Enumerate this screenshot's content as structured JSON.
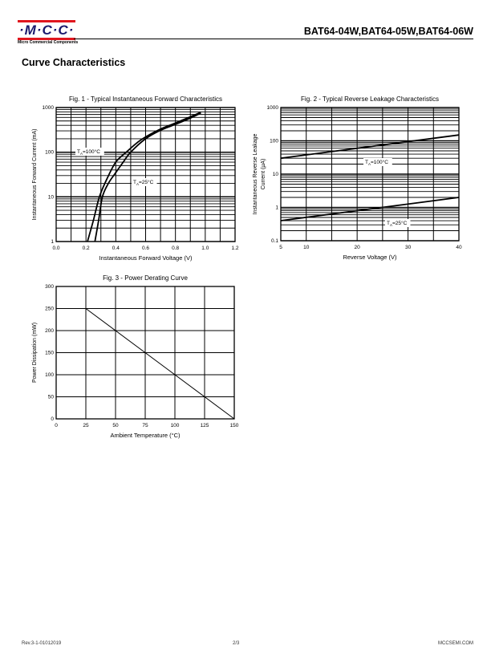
{
  "header": {
    "logo_text": "·M·C·C·",
    "logo_sub": "Micro Commercial Components",
    "part_numbers": "BAT64-04W,BAT64-05W,BAT64-06W"
  },
  "section_title": "Curve Characteristics",
  "footer": {
    "revision": "Rev.3-1-01012019",
    "page": "2/3",
    "website": "MCCSEMI.COM"
  },
  "colors": {
    "logo_red": "#e0161e",
    "logo_blue": "#1a1a6e"
  },
  "chart_data": [
    {
      "type": "line",
      "title": "Fig. 1 - Typical Instantaneous Forward Characteristics",
      "xlabel": "Instantaneous Forward Voltage (V)",
      "ylabel": [
        "Instantaneous Forward Current (mA)"
      ],
      "xscale": "linear",
      "yscale": "log",
      "xlim": [
        0,
        1.2
      ],
      "ylim": [
        1,
        1000
      ],
      "grid": true,
      "xticks": [
        {
          "v": 0,
          "label": "0.0"
        },
        {
          "v": 0.2,
          "label": "0.2"
        },
        {
          "v": 0.4,
          "label": "0.4"
        },
        {
          "v": 0.6,
          "label": "0.6"
        },
        {
          "v": 0.8,
          "label": "0.8"
        },
        {
          "v": 1.0,
          "label": "1.0"
        },
        {
          "v": 1.2,
          "label": "1.2"
        }
      ],
      "yticks": [
        {
          "v": 1,
          "label": "1"
        },
        {
          "v": 10,
          "label": "10"
        },
        {
          "v": 100,
          "label": "100"
        },
        {
          "v": 1000,
          "label": "1000"
        }
      ],
      "xgrid_step": 0.1,
      "series": [
        {
          "name": "TA=100°C",
          "label": {
            "main": "T",
            "sub": "A",
            "rest": "=100°C"
          },
          "x": [
            0.21,
            0.25,
            0.29,
            0.34,
            0.4,
            0.47,
            0.55,
            0.6,
            0.7,
            0.8,
            0.9,
            0.97
          ],
          "y": [
            1,
            3,
            10,
            25,
            60,
            100,
            170,
            220,
            330,
            450,
            620,
            780
          ]
        },
        {
          "name": "TA=25°C",
          "label": {
            "main": "T",
            "sub": "A",
            "rest": "=25°C"
          },
          "x": [
            0.26,
            0.285,
            0.31,
            0.35,
            0.4,
            0.45,
            0.5,
            0.6,
            0.7,
            0.8,
            0.9,
            0.97
          ],
          "y": [
            1,
            3,
            10,
            20,
            35,
            60,
            100,
            200,
            310,
            420,
            580,
            750
          ]
        }
      ]
    },
    {
      "type": "line",
      "title": "Fig. 2 - Typical Reverse Leakage Characteristics",
      "xlabel": "Reverse Voltage (V)",
      "ylabel": [
        "Instantaneous Reverse Leakage",
        "Current (µA)"
      ],
      "xscale": "linear",
      "yscale": "log",
      "xlim": [
        5,
        40
      ],
      "ylim": [
        0.1,
        1000
      ],
      "grid": true,
      "xticks": [
        {
          "v": 5,
          "label": "5"
        },
        {
          "v": 10,
          "label": "10"
        },
        {
          "v": 20,
          "label": "20"
        },
        {
          "v": 30,
          "label": "30"
        },
        {
          "v": 40,
          "label": "40"
        }
      ],
      "yticks": [
        {
          "v": 0.1,
          "label": "0.1"
        },
        {
          "v": 1,
          "label": "1"
        },
        {
          "v": 10,
          "label": "10"
        },
        {
          "v": 100,
          "label": "100"
        },
        {
          "v": 1000,
          "label": "1000"
        }
      ],
      "xgrid_step": 5,
      "series": [
        {
          "name": "TA=100°C",
          "label": {
            "main": "T",
            "sub": "A",
            "rest": "=100°C"
          },
          "x": [
            5,
            40
          ],
          "y": [
            30,
            150
          ]
        },
        {
          "name": "TA=25°C",
          "label": {
            "main": "T",
            "sub": "A",
            "rest": "=25°C"
          },
          "x": [
            5,
            40
          ],
          "y": [
            0.4,
            2
          ]
        }
      ]
    },
    {
      "type": "line",
      "title": "Fig. 3 - Power Derating Curve",
      "xlabel": "Ambient Temperature (°C)",
      "ylabel": [
        "Power Dissipation  (mW)"
      ],
      "xscale": "linear",
      "yscale": "linear",
      "xlim": [
        0,
        150
      ],
      "ylim": [
        0,
        300
      ],
      "grid": true,
      "xticks": [
        {
          "v": 0,
          "label": "0"
        },
        {
          "v": 25,
          "label": "25"
        },
        {
          "v": 50,
          "label": "50"
        },
        {
          "v": 75,
          "label": "75"
        },
        {
          "v": 100,
          "label": "100"
        },
        {
          "v": 125,
          "label": "125"
        },
        {
          "v": 150,
          "label": "150"
        }
      ],
      "yticks": [
        {
          "v": 0,
          "label": "0"
        },
        {
          "v": 50,
          "label": "50"
        },
        {
          "v": 100,
          "label": "100"
        },
        {
          "v": 150,
          "label": "150"
        },
        {
          "v": 200,
          "label": "200"
        },
        {
          "v": 250,
          "label": "250"
        },
        {
          "v": 300,
          "label": "300"
        }
      ],
      "xgrid_step": 25,
      "ygrid_step": 50,
      "series": [
        {
          "name": "Power derating",
          "x": [
            25,
            150
          ],
          "y": [
            250,
            0
          ]
        }
      ]
    }
  ]
}
